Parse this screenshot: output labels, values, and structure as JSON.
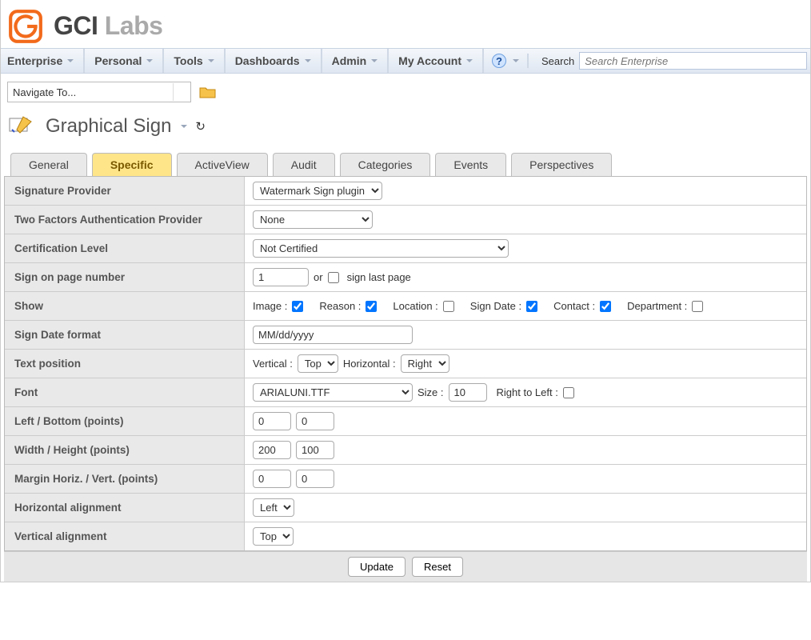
{
  "brand": {
    "name": "GCI",
    "suffix": "Labs"
  },
  "menu": {
    "items": [
      "Enterprise",
      "Personal",
      "Tools",
      "Dashboards",
      "Admin",
      "My Account"
    ],
    "search_label": "Search",
    "search_placeholder": "Search Enterprise"
  },
  "nav_combo": "Navigate To...",
  "page_title": "Graphical Sign",
  "tabs": [
    "General",
    "Specific",
    "ActiveView",
    "Audit",
    "Categories",
    "Events",
    "Perspectives"
  ],
  "active_tab": "Specific",
  "form": {
    "signature_provider": {
      "label": "Signature Provider",
      "value": "Watermark Sign plugin"
    },
    "two_factor": {
      "label": "Two Factors Authentication Provider",
      "value": "None"
    },
    "cert_level": {
      "label": "Certification Level",
      "value": "Not Certified"
    },
    "sign_page": {
      "label": "Sign on page number",
      "value": "1",
      "or": "or",
      "last_label": "sign last page",
      "last_checked": false
    },
    "show": {
      "label": "Show",
      "items": [
        {
          "label": "Image :",
          "checked": true
        },
        {
          "label": "Reason :",
          "checked": true
        },
        {
          "label": "Location :",
          "checked": false
        },
        {
          "label": "Sign Date :",
          "checked": true
        },
        {
          "label": "Contact :",
          "checked": true
        },
        {
          "label": "Department :",
          "checked": false
        }
      ]
    },
    "date_format": {
      "label": "Sign Date format",
      "value": "MM/dd/yyyy"
    },
    "text_pos": {
      "label": "Text position",
      "v_label": "Vertical :",
      "v_value": "Top",
      "h_label": "Horizontal :",
      "h_value": "Right"
    },
    "font": {
      "label": "Font",
      "value": "ARIALUNI.TTF",
      "size_label": "Size :",
      "size": "10",
      "rtl_label": "Right to Left :",
      "rtl": false
    },
    "left_bottom": {
      "label": "Left / Bottom (points)",
      "a": "0",
      "b": "0"
    },
    "width_height": {
      "label": "Width / Height (points)",
      "a": "200",
      "b": "100"
    },
    "margin": {
      "label": "Margin Horiz. / Vert. (points)",
      "a": "0",
      "b": "0"
    },
    "h_align": {
      "label": "Horizontal alignment",
      "value": "Left"
    },
    "v_align": {
      "label": "Vertical alignment",
      "value": "Top"
    }
  },
  "buttons": {
    "update": "Update",
    "reset": "Reset"
  }
}
